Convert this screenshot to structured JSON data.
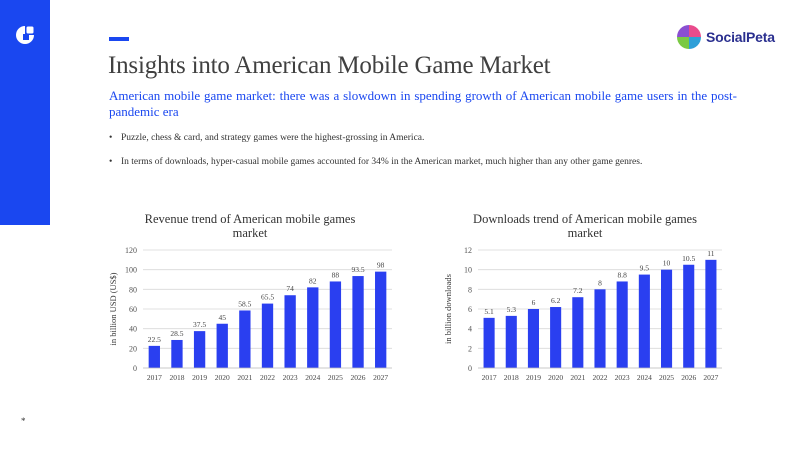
{
  "brand": {
    "name": "SocialPeta"
  },
  "page": {
    "title": "Insights into American Mobile Game Market",
    "subtitle": "American mobile game market: there was a slowdown in spending growth of American mobile game users in the post-pandemic era",
    "bullets": [
      "Puzzle, chess & card, and strategy games were the highest-grossing in America.",
      "In terms of downloads, hyper-casual mobile games accounted for 34% in the American market, much higher than any other game genres."
    ],
    "footnote": "*"
  },
  "colors": {
    "accent": "#1a47f0",
    "bar": "#2a3ff0",
    "grid": "#d9d9d9"
  },
  "chart_data": [
    {
      "type": "bar",
      "title": "Revenue trend of American mobile games market",
      "categories": [
        "2017",
        "2018",
        "2019",
        "2020",
        "2021",
        "2022",
        "2023",
        "2024",
        "2025",
        "2026",
        "2027"
      ],
      "values": [
        22.5,
        28.5,
        37.5,
        45,
        58.5,
        65.5,
        74,
        82,
        88,
        93.5,
        98
      ],
      "value_labels": [
        "22.5",
        "28.5",
        "37.5",
        "45",
        "58.5",
        "65.5",
        "74",
        "82",
        "88",
        "93.5",
        "98"
      ],
      "xlabel": "",
      "ylabel": "in billion USD (US$)",
      "ylim": [
        0,
        120
      ],
      "yticks": [
        0,
        20,
        40,
        60,
        80,
        100,
        120
      ],
      "grid": true
    },
    {
      "type": "bar",
      "title": "Downloads trend of American mobile games market",
      "categories": [
        "2017",
        "2018",
        "2019",
        "2020",
        "2021",
        "2022",
        "2023",
        "2024",
        "2025",
        "2026",
        "2027"
      ],
      "values": [
        5.1,
        5.3,
        6,
        6.2,
        7.2,
        8,
        8.8,
        9.5,
        10,
        10.5,
        11
      ],
      "value_labels": [
        "5.1",
        "5.3",
        "6",
        "6.2",
        "7.2",
        "8",
        "8.8",
        "9.5",
        "10",
        "10.5",
        "11"
      ],
      "xlabel": "",
      "ylabel": "in billion downloads",
      "ylim": [
        0,
        12
      ],
      "yticks": [
        0,
        2,
        4,
        6,
        8,
        10,
        12
      ],
      "grid": true
    }
  ]
}
